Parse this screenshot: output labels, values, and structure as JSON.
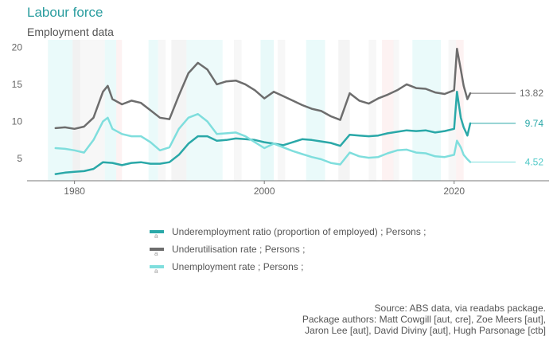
{
  "header": {
    "title": "Labour force",
    "subtitle": "Employment data"
  },
  "colors": {
    "underemployment": "#2aa8a8",
    "underutilisation": "#6d6d6d",
    "unemployment": "#7fdedd",
    "accent": "#2a9d9f"
  },
  "chart_data": {
    "type": "line",
    "title": "Labour force",
    "subtitle": "Employment data",
    "xlim": [
      1975,
      2030
    ],
    "ylim": [
      2,
      21
    ],
    "x_ticks": [
      1980,
      2000,
      2020
    ],
    "y_ticks": [
      5,
      10,
      15,
      20
    ],
    "grid": false,
    "legend_position": "bottom",
    "series": [
      {
        "key": "underutilisation",
        "name": "Underutilisation rate ;  Persons ;",
        "end_label": "13.82",
        "color": "#6d6d6d",
        "points": [
          [
            1978,
            9.1
          ],
          [
            1979,
            9.2
          ],
          [
            1980,
            9.0
          ],
          [
            1981,
            9.3
          ],
          [
            1982,
            10.5
          ],
          [
            1983,
            14.0
          ],
          [
            1983.5,
            14.8
          ],
          [
            1984,
            13.0
          ],
          [
            1985,
            12.3
          ],
          [
            1986,
            12.8
          ],
          [
            1987,
            12.5
          ],
          [
            1988,
            11.5
          ],
          [
            1989,
            10.5
          ],
          [
            1990,
            10.3
          ],
          [
            1991,
            13.5
          ],
          [
            1992,
            16.5
          ],
          [
            1993,
            17.9
          ],
          [
            1994,
            17.0
          ],
          [
            1995,
            15.0
          ],
          [
            1996,
            15.4
          ],
          [
            1997,
            15.5
          ],
          [
            1998,
            15.0
          ],
          [
            1999,
            14.2
          ],
          [
            2000,
            13.1
          ],
          [
            2001,
            14.0
          ],
          [
            2002,
            13.4
          ],
          [
            2003,
            12.8
          ],
          [
            2004,
            12.2
          ],
          [
            2005,
            11.7
          ],
          [
            2006,
            11.4
          ],
          [
            2007,
            10.7
          ],
          [
            2008,
            10.2
          ],
          [
            2009,
            13.8
          ],
          [
            2010,
            12.8
          ],
          [
            2011,
            12.4
          ],
          [
            2012,
            13.1
          ],
          [
            2013,
            13.6
          ],
          [
            2014,
            14.2
          ],
          [
            2015,
            15.0
          ],
          [
            2016,
            14.5
          ],
          [
            2017,
            14.4
          ],
          [
            2018,
            13.9
          ],
          [
            2019,
            13.7
          ],
          [
            2020,
            14.2
          ],
          [
            2020.3,
            19.8
          ],
          [
            2020.7,
            17.0
          ],
          [
            2021,
            14.8
          ],
          [
            2021.4,
            13.0
          ],
          [
            2021.7,
            13.8
          ]
        ]
      },
      {
        "key": "underemployment",
        "name": "Underemployment ratio (proportion of employed) ;  Persons ;",
        "end_label": "9.74",
        "color": "#2aa8a8",
        "points": [
          [
            1978,
            2.9
          ],
          [
            1979,
            3.1
          ],
          [
            1980,
            3.2
          ],
          [
            1981,
            3.3
          ],
          [
            1982,
            3.6
          ],
          [
            1983,
            4.5
          ],
          [
            1984,
            4.4
          ],
          [
            1985,
            4.1
          ],
          [
            1986,
            4.4
          ],
          [
            1987,
            4.5
          ],
          [
            1988,
            4.3
          ],
          [
            1989,
            4.3
          ],
          [
            1990,
            4.5
          ],
          [
            1991,
            5.5
          ],
          [
            1992,
            7.0
          ],
          [
            1993,
            8.0
          ],
          [
            1994,
            8.0
          ],
          [
            1995,
            7.4
          ],
          [
            1996,
            7.5
          ],
          [
            1997,
            7.7
          ],
          [
            1998,
            7.6
          ],
          [
            1999,
            7.5
          ],
          [
            2000,
            7.2
          ],
          [
            2001,
            7.0
          ],
          [
            2002,
            6.8
          ],
          [
            2003,
            7.2
          ],
          [
            2004,
            7.6
          ],
          [
            2005,
            7.5
          ],
          [
            2006,
            7.3
          ],
          [
            2007,
            7.1
          ],
          [
            2008,
            6.7
          ],
          [
            2009,
            8.2
          ],
          [
            2010,
            8.1
          ],
          [
            2011,
            8.0
          ],
          [
            2012,
            8.1
          ],
          [
            2013,
            8.4
          ],
          [
            2014,
            8.6
          ],
          [
            2015,
            8.8
          ],
          [
            2016,
            8.7
          ],
          [
            2017,
            8.8
          ],
          [
            2018,
            8.5
          ],
          [
            2019,
            8.7
          ],
          [
            2020,
            9.0
          ],
          [
            2020.3,
            14.0
          ],
          [
            2020.7,
            10.5
          ],
          [
            2021,
            9.2
          ],
          [
            2021.4,
            8.1
          ],
          [
            2021.7,
            9.74
          ]
        ]
      },
      {
        "key": "unemployment",
        "name": "Unemployment rate ;  Persons ;",
        "end_label": "4.52",
        "color": "#7fdedd",
        "points": [
          [
            1978,
            6.4
          ],
          [
            1979,
            6.3
          ],
          [
            1980,
            6.1
          ],
          [
            1981,
            5.8
          ],
          [
            1982,
            7.5
          ],
          [
            1983,
            10.0
          ],
          [
            1983.5,
            10.5
          ],
          [
            1984,
            9.0
          ],
          [
            1985,
            8.3
          ],
          [
            1986,
            8.0
          ],
          [
            1987,
            8.0
          ],
          [
            1988,
            7.2
          ],
          [
            1989,
            6.1
          ],
          [
            1990,
            6.5
          ],
          [
            1991,
            9.0
          ],
          [
            1992,
            10.5
          ],
          [
            1993,
            11.0
          ],
          [
            1994,
            10.0
          ],
          [
            1995,
            8.3
          ],
          [
            1996,
            8.4
          ],
          [
            1997,
            8.5
          ],
          [
            1998,
            8.0
          ],
          [
            1999,
            7.2
          ],
          [
            2000,
            6.4
          ],
          [
            2001,
            7.0
          ],
          [
            2002,
            6.5
          ],
          [
            2003,
            6.0
          ],
          [
            2004,
            5.6
          ],
          [
            2005,
            5.2
          ],
          [
            2006,
            4.9
          ],
          [
            2007,
            4.4
          ],
          [
            2008,
            4.2
          ],
          [
            2009,
            5.8
          ],
          [
            2010,
            5.3
          ],
          [
            2011,
            5.1
          ],
          [
            2012,
            5.2
          ],
          [
            2013,
            5.7
          ],
          [
            2014,
            6.1
          ],
          [
            2015,
            6.2
          ],
          [
            2016,
            5.8
          ],
          [
            2017,
            5.7
          ],
          [
            2018,
            5.3
          ],
          [
            2019,
            5.2
          ],
          [
            2020,
            5.5
          ],
          [
            2020.3,
            7.4
          ],
          [
            2020.7,
            6.5
          ],
          [
            2021,
            5.5
          ],
          [
            2021.4,
            4.9
          ],
          [
            2021.7,
            4.52
          ]
        ]
      }
    ],
    "shaded_periods": [
      {
        "start": 1977.2,
        "end": 1979.8,
        "color": "#7fdedd",
        "opacity": 0.16
      },
      {
        "start": 1979.8,
        "end": 1980.6,
        "color": "#cfcfcf",
        "opacity": 0.3
      },
      {
        "start": 1980.6,
        "end": 1983.2,
        "color": "#d9d9d9",
        "opacity": 0.22
      },
      {
        "start": 1983.2,
        "end": 1984.4,
        "color": "#7fdedd",
        "opacity": 0.16
      },
      {
        "start": 1984.4,
        "end": 1985.0,
        "color": "#f4c6c6",
        "opacity": 0.22
      },
      {
        "start": 1987.8,
        "end": 1988.8,
        "color": "#7fdedd",
        "opacity": 0.16
      },
      {
        "start": 1988.8,
        "end": 1989.6,
        "color": "#d9d9d9",
        "opacity": 0.22
      },
      {
        "start": 1990.2,
        "end": 1991.8,
        "color": "#d9d9d9",
        "opacity": 0.3
      },
      {
        "start": 1991.8,
        "end": 1995.6,
        "color": "#7fdedd",
        "opacity": 0.14
      },
      {
        "start": 1996.8,
        "end": 1997.6,
        "color": "#d9d9d9",
        "opacity": 0.22
      },
      {
        "start": 1999.6,
        "end": 2001.0,
        "color": "#7fdedd",
        "opacity": 0.18
      },
      {
        "start": 2001.4,
        "end": 2002.2,
        "color": "#d9d9d9",
        "opacity": 0.22
      },
      {
        "start": 2004.4,
        "end": 2006.4,
        "color": "#7fdedd",
        "opacity": 0.16
      },
      {
        "start": 2007.8,
        "end": 2009.0,
        "color": "#d9d9d9",
        "opacity": 0.3
      },
      {
        "start": 2011.0,
        "end": 2011.8,
        "color": "#d9d9d9",
        "opacity": 0.22
      },
      {
        "start": 2012.4,
        "end": 2013.6,
        "color": "#f4c6c6",
        "opacity": 0.22
      },
      {
        "start": 2013.6,
        "end": 2014.2,
        "color": "#d9d9d9",
        "opacity": 0.22
      },
      {
        "start": 2015.6,
        "end": 2018.6,
        "color": "#7fdedd",
        "opacity": 0.16
      },
      {
        "start": 2019.4,
        "end": 2020.2,
        "color": "#d9d9d9",
        "opacity": 0.22
      },
      {
        "start": 2020.2,
        "end": 2021.0,
        "color": "#f4c6c6",
        "opacity": 0.22
      }
    ]
  },
  "legend": {
    "items": [
      {
        "label": "Underemployment ratio (proportion of employed) ;  Persons ;",
        "color": "#2aa8a8"
      },
      {
        "label": "Underutilisation rate ;  Persons ;",
        "color": "#6d6d6d"
      },
      {
        "label": "Unemployment rate ;  Persons ;",
        "color": "#7fdedd"
      }
    ],
    "key_glyph": "a"
  },
  "source": {
    "line1": "Source: ABS data, via readabs package.",
    "line2": "Package authors: Matt Cowgill [aut, cre], Zoe Meers [aut],",
    "line3": "Jaron Lee [aut], David Diviny [aut], Hugh Parsonage [ctb]"
  }
}
